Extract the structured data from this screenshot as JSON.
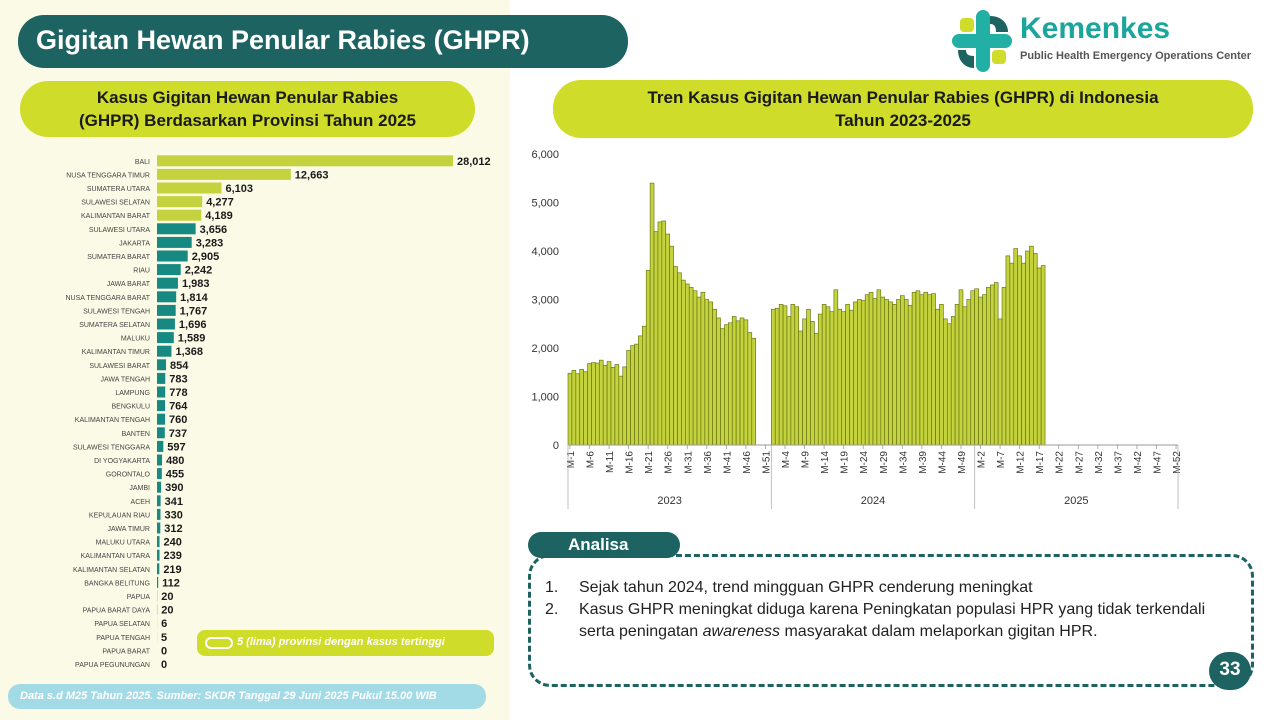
{
  "header": {
    "title": "Gigitan Hewan Penular Rabies (GHPR)"
  },
  "logo": {
    "name": "Kemenkes",
    "subtitle": "Public Health Emergency Operations Center"
  },
  "colors": {
    "dark_teal": "#1c6361",
    "teal_bar": "#168a82",
    "lime": "#cfdc2a",
    "lime_bar": "#c4d23d",
    "bar_outline": "#5c6a0f",
    "light_blue": "#a2dbe6",
    "panel_bg": "#fbfae6"
  },
  "left_chart_title_lines": [
    "Kasus Gigitan Hewan Penular Rabies",
    "(GHPR) Berdasarkan Provinsi Tahun 2025"
  ],
  "right_chart_title_lines": [
    "Tren Kasus Gigitan Hewan Penular Rabies (GHPR) di Indonesia",
    "Tahun 2023-2025"
  ],
  "legend": {
    "text": "5 (lima) provinsi dengan kasus tertinggi"
  },
  "source": {
    "text": "Data s.d M25 Tahun 2025. Sumber: SKDR Tanggal 29 Juni 2025 Pukul 15.00 WIB"
  },
  "analisa": {
    "label": "Analisa",
    "items": [
      {
        "num": "1.",
        "text": "Sejak tahun 2024, trend mingguan GHPR cenderung meningkat",
        "italic": "",
        "after": ""
      },
      {
        "num": "2.",
        "text": "Kasus GHPR meningkat diduga karena Peningkatan populasi HPR yang tidak terkendali serta peningatan ",
        "italic": "awareness",
        "after": " masyarakat dalam melaporkan gigitan HPR."
      }
    ]
  },
  "page_number": "33",
  "chart_data": [
    {
      "type": "bar",
      "orientation": "horizontal",
      "highlight_top_n": 5,
      "categories": [
        "BALI",
        "NUSA TENGGARA TIMUR",
        "SUMATERA UTARA",
        "SULAWESI SELATAN",
        "KALIMANTAN BARAT",
        "SULAWESI UTARA",
        "JAKARTA",
        "SUMATERA BARAT",
        "RIAU",
        "JAWA BARAT",
        "NUSA TENGGARA BARAT",
        "SULAWESI TENGAH",
        "SUMATERA SELATAN",
        "MALUKU",
        "KALIMANTAN TIMUR",
        "SULAWESI BARAT",
        "JAWA TENGAH",
        "LAMPUNG",
        "BENGKULU",
        "KALIMANTAN TENGAH",
        "BANTEN",
        "SULAWESI TENGGARA",
        "DI YOGYAKARTA",
        "GORONTALO",
        "JAMBI",
        "ACEH",
        "KEPULAUAN RIAU",
        "JAWA TIMUR",
        "MALUKU UTARA",
        "KALIMANTAN UTARA",
        "KALIMANTAN SELATAN",
        "BANGKA BELITUNG",
        "PAPUA",
        "PAPUA BARAT DAYA",
        "PAPUA SELATAN",
        "PAPUA TENGAH",
        "PAPUA BARAT",
        "PAPUA PEGUNUNGAN"
      ],
      "values": [
        28012,
        12663,
        6103,
        4277,
        4189,
        3656,
        3283,
        2905,
        2242,
        1983,
        1814,
        1767,
        1696,
        1589,
        1368,
        854,
        783,
        778,
        764,
        760,
        737,
        597,
        480,
        455,
        390,
        341,
        330,
        312,
        240,
        239,
        219,
        112,
        20,
        20,
        6,
        5,
        0,
        0
      ],
      "value_labels": [
        "28,012",
        "12,663",
        "6,103",
        "4,277",
        "4,189",
        "3,656",
        "3,283",
        "2,905",
        "2,242",
        "1,983",
        "1,814",
        "1,767",
        "1,696",
        "1,589",
        "1,368",
        "854",
        "783",
        "778",
        "764",
        "760",
        "737",
        "597",
        "480",
        "455",
        "390",
        "341",
        "330",
        "312",
        "240",
        "239",
        "219",
        "112",
        "20",
        "20",
        "6",
        "5",
        "0",
        "0"
      ]
    },
    {
      "type": "bar",
      "yticks": [
        0,
        1000,
        2000,
        3000,
        4000,
        5000,
        6000
      ],
      "ytick_labels": [
        "0",
        "1,000",
        "2,000",
        "3,000",
        "4,000",
        "5,000",
        "6,000"
      ],
      "ylim": [
        0,
        6000
      ],
      "groups": [
        {
          "name": "2023",
          "weeks": 52,
          "tick_labels": [
            "M-1",
            "M-6",
            "M-11",
            "M-16",
            "M-21",
            "M-26",
            "M-31",
            "M-36",
            "M-41",
            "M-46",
            "M-51"
          ],
          "values": [
            1480,
            1540,
            1470,
            1560,
            1510,
            1680,
            1700,
            1690,
            1750,
            1640,
            1720,
            1600,
            1660,
            1420,
            1610,
            1950,
            2050,
            2080,
            2250,
            2450,
            3600,
            5400,
            4400,
            4600,
            4620,
            4350,
            4100,
            3680,
            3550,
            3400,
            3320,
            3250,
            3180,
            3050,
            3150,
            3000,
            2950,
            2800,
            2620,
            2400,
            2480,
            2520,
            2650,
            2560,
            2620,
            2580,
            2320,
            2200,
            0,
            0,
            0,
            0
          ]
        },
        {
          "name": "2024",
          "weeks": 52,
          "tick_labels": [
            "M-4",
            "M-9",
            "M-14",
            "M-19",
            "M-24",
            "M-29",
            "M-34",
            "M-39",
            "M-44",
            "M-49"
          ],
          "values": [
            2800,
            2820,
            2900,
            2870,
            2650,
            2900,
            2850,
            2350,
            2600,
            2800,
            2550,
            2300,
            2700,
            2900,
            2850,
            2750,
            3200,
            2800,
            2750,
            2900,
            2780,
            2950,
            3000,
            2980,
            3100,
            3150,
            3020,
            3200,
            3050,
            3000,
            2950,
            2900,
            3000,
            3080,
            3000,
            2880,
            3150,
            3180,
            3100,
            3150,
            3100,
            3120,
            2800,
            2900,
            2600,
            2500,
            2650,
            2900,
            3200,
            2850,
            3000,
            3180
          ]
        },
        {
          "name": "2025",
          "weeks": 52,
          "tick_labels": [
            "M-2",
            "M-7",
            "M-12",
            "M-17",
            "M-22",
            "M-27",
            "M-32",
            "M-37",
            "M-42",
            "M-47",
            "M-52"
          ],
          "values": [
            3220,
            3050,
            3100,
            3250,
            3300,
            3350,
            2600,
            3250,
            3900,
            3750,
            4050,
            3900,
            3750,
            4000,
            4100,
            3950,
            3650,
            3700,
            0,
            0,
            0,
            0,
            0,
            0,
            0,
            0,
            0,
            0,
            0,
            0,
            0,
            0,
            0,
            0,
            0,
            0,
            0,
            0,
            0,
            0,
            0,
            0,
            0,
            0,
            0,
            0,
            0,
            0,
            0,
            0,
            0,
            0
          ]
        }
      ]
    }
  ]
}
